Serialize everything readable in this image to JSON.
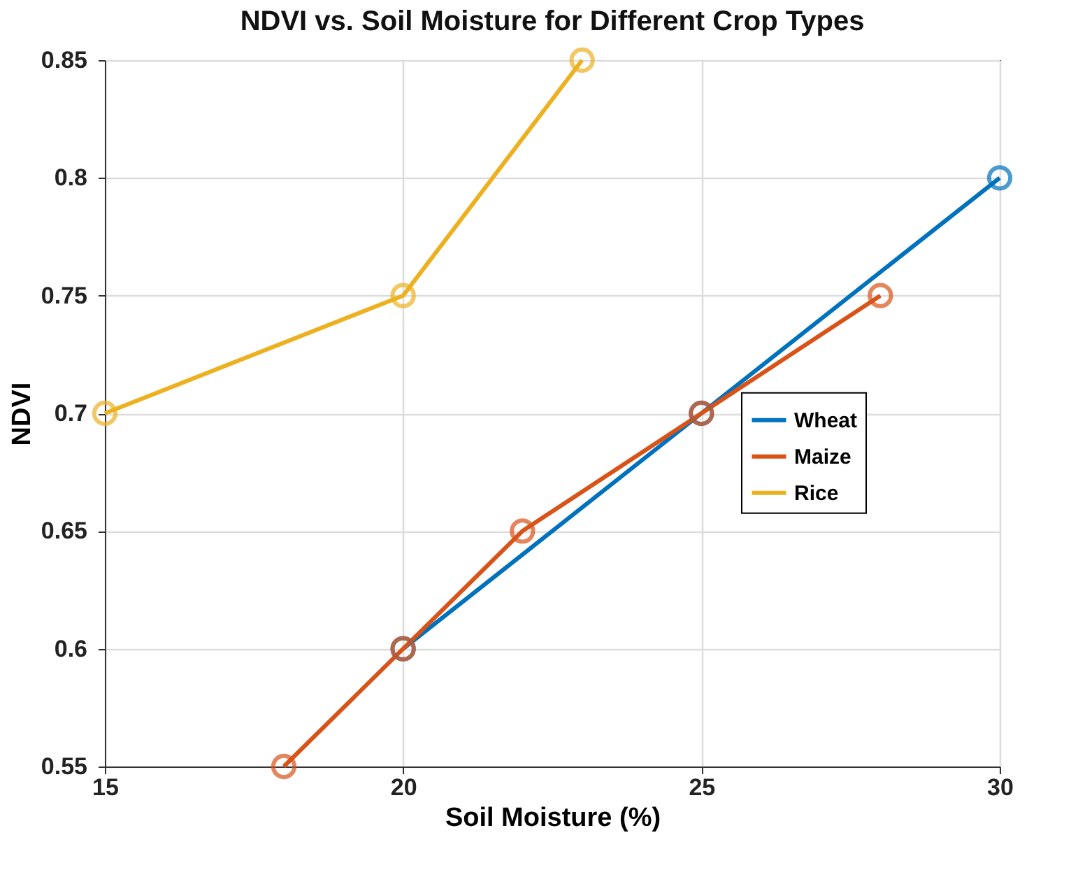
{
  "chart_data": {
    "type": "line",
    "title": "NDVI vs. Soil Moisture for Different Crop Types",
    "xlabel": "Soil Moisture (%)",
    "ylabel": "NDVI",
    "series": [
      {
        "name": "Wheat",
        "color": "#0072bd",
        "x": [
          20,
          25,
          30
        ],
        "values": [
          0.6,
          0.7,
          0.8
        ]
      },
      {
        "name": "Maize",
        "color": "#d95319",
        "x": [
          18,
          20,
          22,
          25,
          28
        ],
        "values": [
          0.55,
          0.6,
          0.65,
          0.7,
          0.75
        ]
      },
      {
        "name": "Rice",
        "color": "#edb120",
        "x": [
          15,
          20,
          23
        ],
        "values": [
          0.7,
          0.75,
          0.85
        ]
      }
    ],
    "xlim": [
      15,
      30
    ],
    "xticks": [
      15,
      20,
      25,
      30
    ],
    "ylim": [
      0.55,
      0.85
    ],
    "yticks": [
      0.55,
      0.6,
      0.65,
      0.7,
      0.75,
      0.8,
      0.85
    ],
    "grid": true,
    "legend": "right",
    "marker": "circle",
    "line_style": "solid"
  }
}
